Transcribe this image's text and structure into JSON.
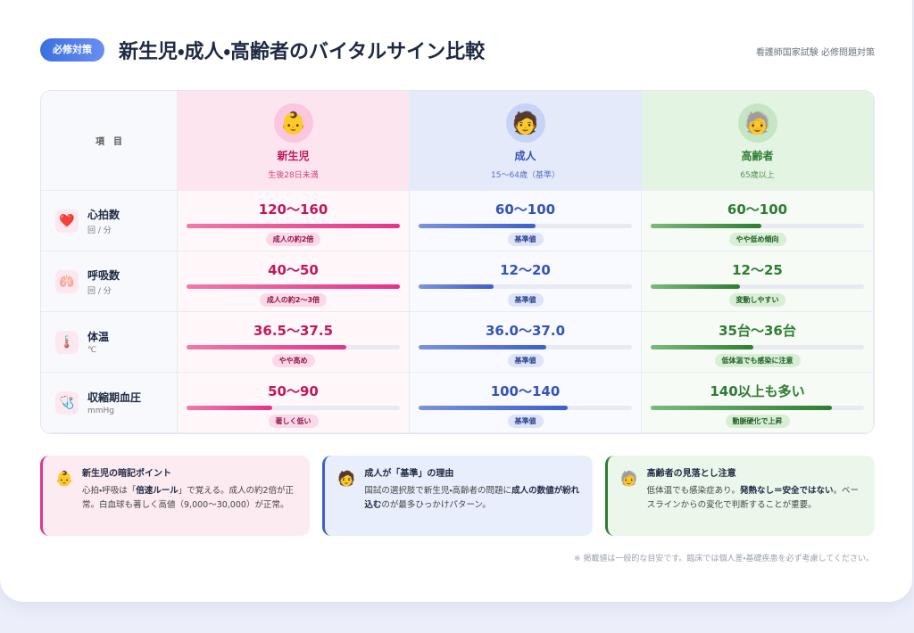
{
  "header": {
    "badge": "必修対策",
    "title": "新生児・成人・高齢者のバイタルサイン比較",
    "source": "看護師国家試験 必修問題対策"
  },
  "table": {
    "corner": "項　目",
    "columns": [
      {
        "icon": "👶",
        "name": "新生児",
        "sub": "生後28日未満"
      },
      {
        "icon": "🧑",
        "name": "成人",
        "sub": "15〜64歳（基準）"
      },
      {
        "icon": "🧓",
        "name": "高齢者",
        "sub": "65歳以上"
      }
    ],
    "rows": [
      {
        "icon": "❤️",
        "label": "心拍数",
        "unit": "回 / 分",
        "cells": [
          {
            "value": "120〜160",
            "note": "成人の約2倍"
          },
          {
            "value": "60〜100",
            "note": "基準値"
          },
          {
            "value": "60〜100",
            "note": "やや低め傾向"
          }
        ]
      },
      {
        "icon": "🫁",
        "label": "呼吸数",
        "unit": "回 / 分",
        "cells": [
          {
            "value": "40〜50",
            "note": "成人の約2〜3倍"
          },
          {
            "value": "12〜20",
            "note": "基準値"
          },
          {
            "value": "12〜25",
            "note": "変動しやすい"
          }
        ]
      },
      {
        "icon": "🌡️",
        "label": "体温",
        "unit": "℃",
        "cells": [
          {
            "value": "36.5〜37.5",
            "note": "やや高め"
          },
          {
            "value": "36.0〜37.0",
            "note": "基準値"
          },
          {
            "value": "35台〜36台",
            "note": "低体温でも感染に注意"
          }
        ]
      },
      {
        "icon": "🩺",
        "label": "収縮期血圧",
        "unit": "mmHg",
        "cells": [
          {
            "value": "50〜90",
            "note": "著しく低い"
          },
          {
            "value": "100〜140",
            "note": "基準値"
          },
          {
            "value": "140以上も多い",
            "note": "動脈硬化で上昇"
          }
        ]
      }
    ]
  },
  "notes": [
    {
      "icon": "👶",
      "title": "新生児の暗記ポイント",
      "parts": [
        "心拍・呼吸は「",
        "倍速ルール",
        "」で覚える。成人の約2倍が正常。白血球も著しく高値（9,000〜30,000）が正常。"
      ]
    },
    {
      "icon": "🧑",
      "title": "成人が「基準」の理由",
      "parts": [
        "国試の選択肢で新生児・高齢者の問題に",
        "成人の数値が紛れ込む",
        "のが最多ひっかけパターン。"
      ]
    },
    {
      "icon": "🧓",
      "title": "高齢者の見落とし注意",
      "parts": [
        "低体温でも感染症あり。",
        "発熱なし＝安全ではない",
        "。ベースラインからの変化で判断することが重要。"
      ]
    }
  ],
  "footer": "※ 掲載値は一般的な目安です。臨床では個人差・基礎疾患を必ず考慮してください。"
}
